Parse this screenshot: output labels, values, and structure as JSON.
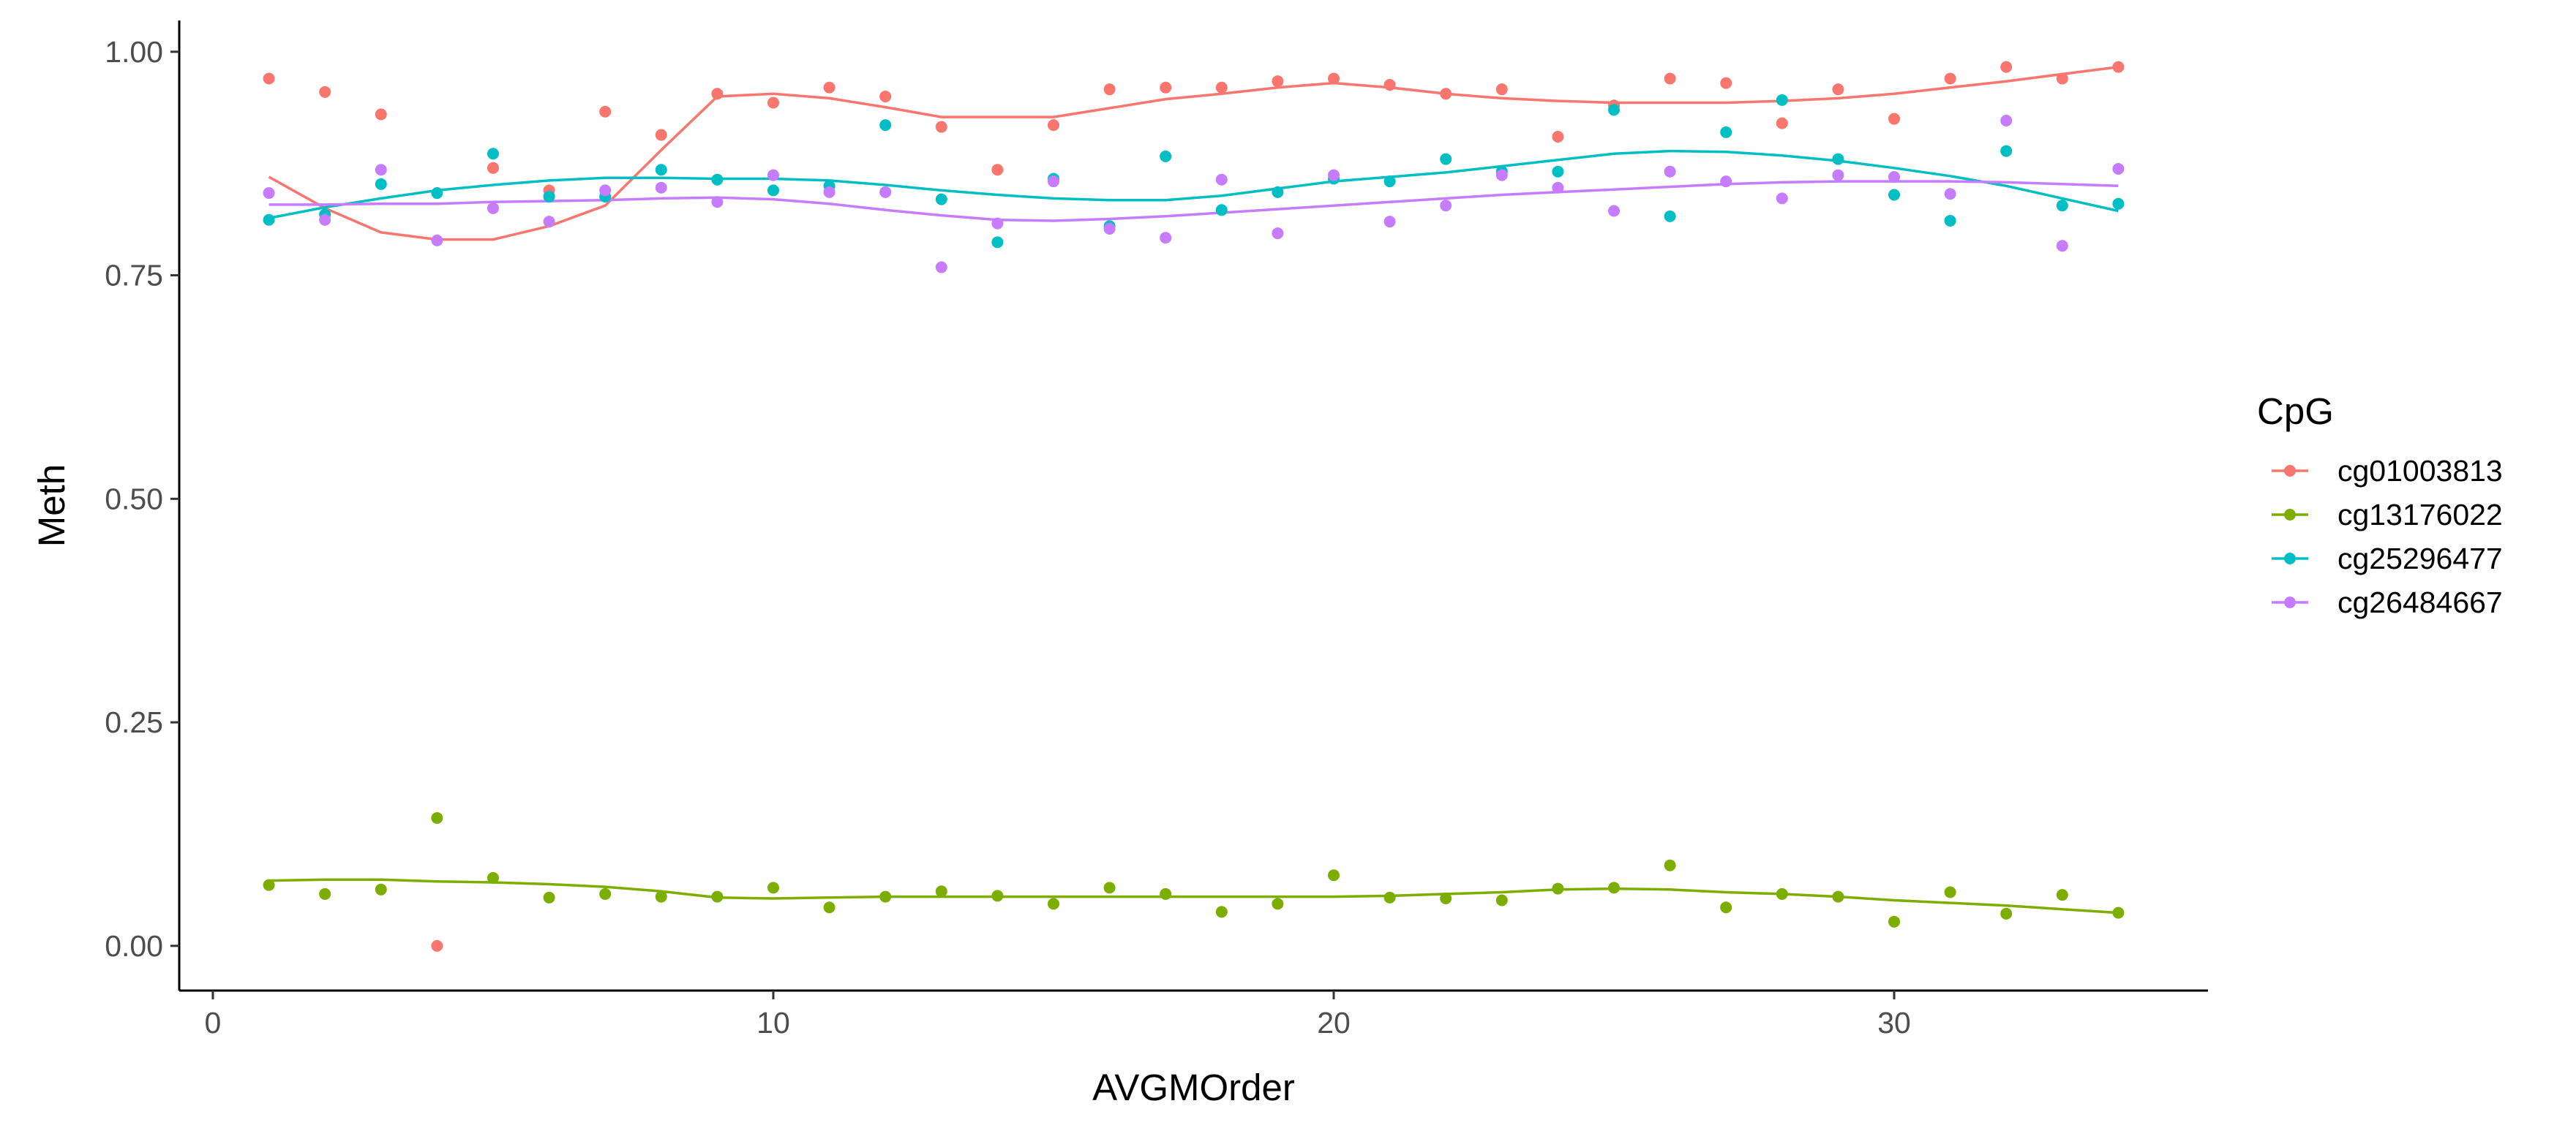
{
  "chart_data": {
    "type": "scatter",
    "title": "",
    "xlabel": "AVGMOrder",
    "ylabel": "Meth",
    "xlim": [
      -0.6,
      35.6
    ],
    "ylim": [
      -0.05,
      1.035
    ],
    "xticks": [
      0,
      10,
      20,
      30
    ],
    "xtick_labels": [
      "0",
      "10",
      "20",
      "30"
    ],
    "yticks": [
      0.0,
      0.25,
      0.5,
      0.75,
      1.0
    ],
    "ytick_labels": [
      "0.00",
      "0.25",
      "0.50",
      "0.75",
      "1.00"
    ],
    "grid": false,
    "legend": {
      "title": "CpG",
      "position": "right"
    },
    "x": [
      1,
      2,
      3,
      4,
      5,
      6,
      7,
      8,
      9,
      10,
      11,
      12,
      13,
      14,
      15,
      16,
      17,
      18,
      19,
      20,
      21,
      22,
      23,
      24,
      25,
      26,
      27,
      28,
      29,
      30,
      31,
      32,
      33,
      34
    ],
    "series": [
      {
        "name": "cg01003813",
        "color": "#F8766D",
        "points": [
          0.97,
          0.955,
          0.93,
          0.0,
          0.87,
          0.845,
          0.933,
          0.907,
          0.953,
          0.943,
          0.96,
          0.95,
          0.916,
          0.868,
          0.918,
          0.958,
          0.96,
          0.96,
          0.967,
          0.97,
          0.963,
          0.953,
          0.958,
          0.905,
          0.94,
          0.97,
          0.965,
          0.92,
          0.958,
          0.925,
          0.97,
          0.983,
          0.97,
          0.983
        ],
        "smooth": [
          0.86,
          0.825,
          0.798,
          0.79,
          0.79,
          0.805,
          0.828,
          0.89,
          0.95,
          0.953,
          0.948,
          0.938,
          0.927,
          0.927,
          0.927,
          0.937,
          0.947,
          0.953,
          0.96,
          0.965,
          0.96,
          0.953,
          0.948,
          0.945,
          0.943,
          0.943,
          0.943,
          0.945,
          0.948,
          0.953,
          0.96,
          0.967,
          0.975,
          0.983
        ]
      },
      {
        "name": "cg13176022",
        "color": "#7CAE00",
        "points": [
          0.068,
          0.058,
          0.063,
          0.143,
          0.076,
          0.054,
          0.058,
          0.055,
          0.055,
          0.065,
          0.043,
          0.055,
          0.061,
          0.056,
          0.047,
          0.065,
          0.058,
          0.038,
          0.047,
          0.079,
          0.054,
          0.053,
          0.051,
          0.064,
          0.065,
          0.09,
          0.043,
          0.058,
          0.055,
          0.027,
          0.06,
          0.036,
          0.057,
          0.037
        ],
        "smooth": [
          0.073,
          0.074,
          0.074,
          0.072,
          0.071,
          0.069,
          0.066,
          0.061,
          0.054,
          0.053,
          0.054,
          0.055,
          0.055,
          0.055,
          0.055,
          0.055,
          0.055,
          0.055,
          0.055,
          0.055,
          0.056,
          0.058,
          0.06,
          0.063,
          0.064,
          0.063,
          0.06,
          0.058,
          0.055,
          0.051,
          0.048,
          0.045,
          0.041,
          0.037
        ]
      },
      {
        "name": "cg25296477",
        "color": "#00BFC4",
        "points": [
          0.812,
          0.818,
          0.852,
          0.842,
          0.886,
          0.838,
          0.838,
          0.868,
          0.857,
          0.845,
          0.85,
          0.918,
          0.835,
          0.787,
          0.858,
          0.805,
          0.883,
          0.823,
          0.843,
          0.858,
          0.855,
          0.88,
          0.866,
          0.866,
          0.935,
          0.816,
          0.91,
          0.946,
          0.88,
          0.84,
          0.811,
          0.889,
          0.828,
          0.83
        ],
        "smooth": [
          0.814,
          0.826,
          0.836,
          0.845,
          0.851,
          0.856,
          0.859,
          0.859,
          0.858,
          0.858,
          0.856,
          0.851,
          0.845,
          0.84,
          0.836,
          0.834,
          0.834,
          0.839,
          0.847,
          0.855,
          0.86,
          0.865,
          0.872,
          0.879,
          0.886,
          0.889,
          0.888,
          0.884,
          0.878,
          0.87,
          0.861,
          0.85,
          0.836,
          0.822
        ]
      },
      {
        "name": "cg26484667",
        "color": "#C77CFF",
        "points": [
          0.842,
          0.812,
          0.868,
          0.789,
          0.825,
          0.81,
          0.845,
          0.848,
          0.832,
          0.862,
          0.843,
          0.843,
          0.759,
          0.808,
          0.855,
          0.802,
          0.792,
          0.857,
          0.797,
          0.862,
          0.81,
          0.828,
          0.862,
          0.848,
          0.822,
          0.866,
          0.855,
          0.836,
          0.862,
          0.86,
          0.841,
          0.923,
          0.783,
          0.869
        ],
        "smooth": [
          0.829,
          0.829,
          0.83,
          0.83,
          0.832,
          0.833,
          0.834,
          0.836,
          0.837,
          0.835,
          0.83,
          0.823,
          0.817,
          0.812,
          0.811,
          0.813,
          0.816,
          0.82,
          0.824,
          0.828,
          0.832,
          0.836,
          0.84,
          0.843,
          0.846,
          0.849,
          0.852,
          0.854,
          0.855,
          0.855,
          0.855,
          0.854,
          0.852,
          0.85
        ]
      }
    ]
  }
}
